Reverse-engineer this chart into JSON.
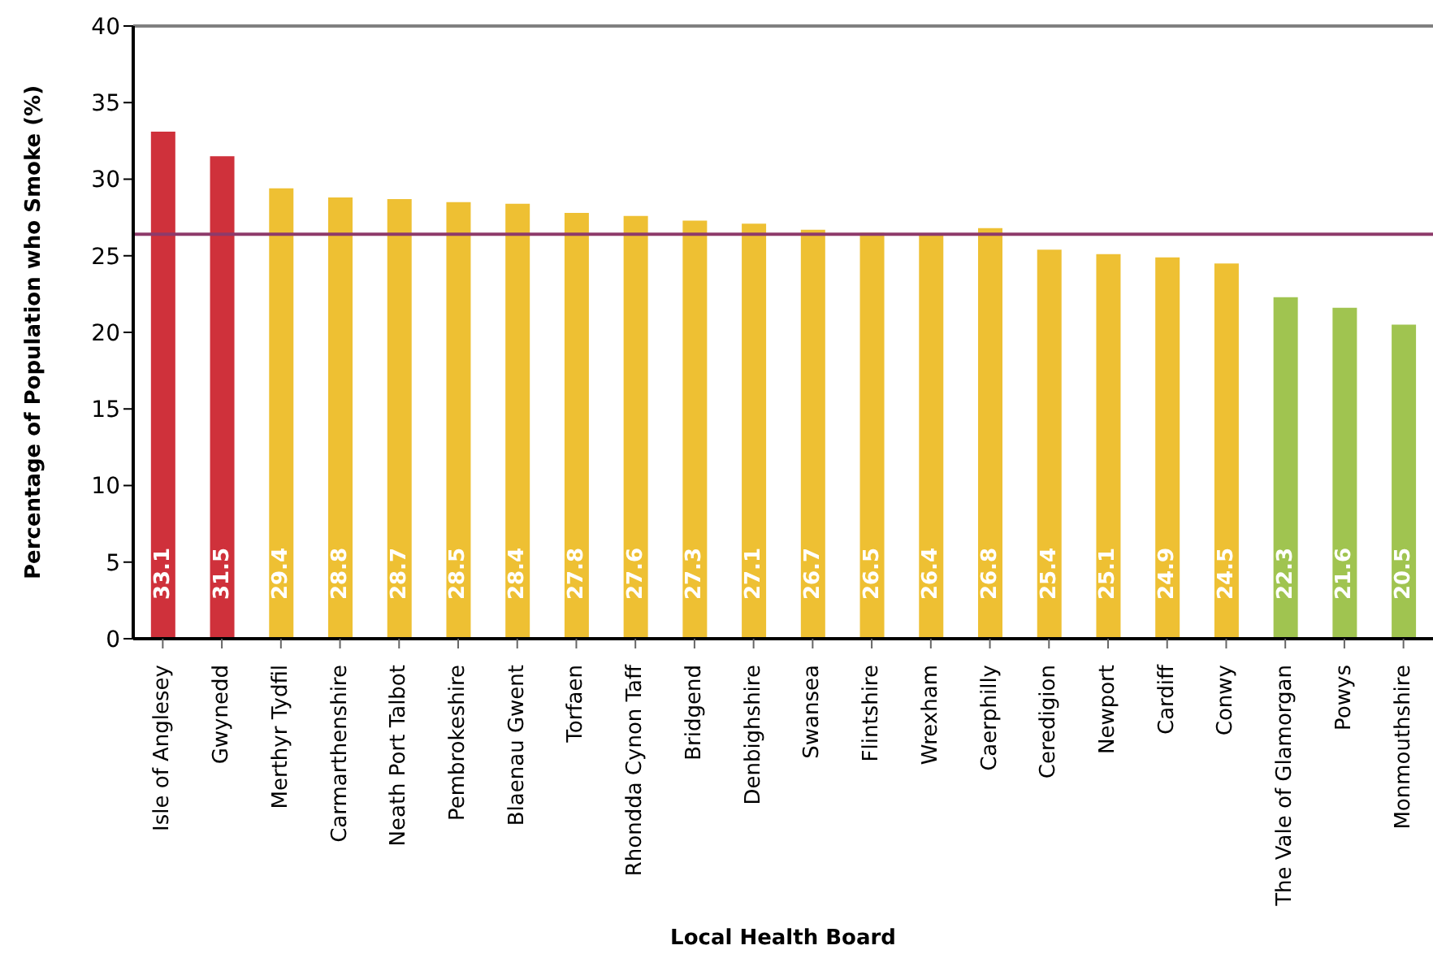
{
  "chart_data": {
    "type": "bar",
    "xlabel": "Local Health Board",
    "ylabel": "Percentage of Population who Smoke (%)",
    "categories": [
      "Isle of Anglesey",
      "Gwynedd",
      "Merthyr Tydfil",
      "Carmarthenshire",
      "Neath Port Talbot",
      "Pembrokeshire",
      "Blaenau Gwent",
      "Torfaen",
      "Rhondda Cynon Taff",
      "Bridgend",
      "Denbighshire",
      "Swansea",
      "Flintshire",
      "Wrexham",
      "Caerphilly",
      "Ceredigion",
      "Newport",
      "Cardiff",
      "Conwy",
      "The Vale of Glamorgan",
      "Powys",
      "Monmouthshire"
    ],
    "values": [
      33.1,
      31.5,
      29.4,
      28.8,
      28.7,
      28.5,
      28.4,
      27.8,
      27.6,
      27.3,
      27.1,
      26.7,
      26.5,
      26.4,
      26.8,
      25.4,
      25.1,
      24.9,
      24.5,
      22.3,
      21.6,
      20.5
    ],
    "colors": [
      "#cf313b",
      "#cf313b",
      "#eec033",
      "#eec033",
      "#eec033",
      "#eec033",
      "#eec033",
      "#eec033",
      "#eec033",
      "#eec033",
      "#eec033",
      "#eec033",
      "#eec033",
      "#eec033",
      "#eec033",
      "#eec033",
      "#eec033",
      "#eec033",
      "#eec033",
      "#a0c450",
      "#a0c450",
      "#a0c450"
    ],
    "data_labels": true,
    "ylim": [
      0,
      40
    ],
    "yticks": [
      0,
      5,
      10,
      15,
      20,
      25,
      30,
      35,
      40
    ],
    "ref_lines": [
      {
        "axis": "y",
        "value": 26.4,
        "color": "#8e3a6a"
      }
    ]
  }
}
